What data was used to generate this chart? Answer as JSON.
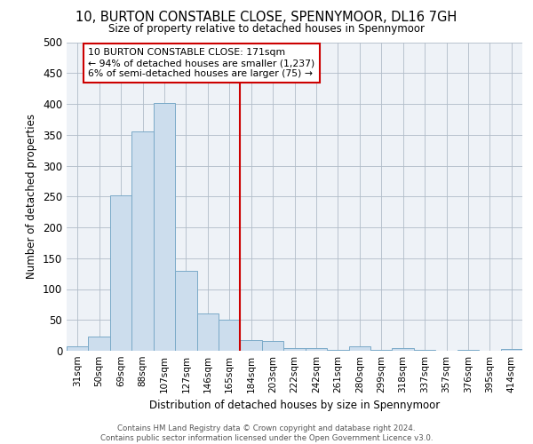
{
  "title": "10, BURTON CONSTABLE CLOSE, SPENNYMOOR, DL16 7GH",
  "subtitle": "Size of property relative to detached houses in Spennymoor",
  "xlabel": "Distribution of detached houses by size in Spennymoor",
  "ylabel": "Number of detached properties",
  "bar_labels": [
    "31sqm",
    "50sqm",
    "69sqm",
    "88sqm",
    "107sqm",
    "127sqm",
    "146sqm",
    "165sqm",
    "184sqm",
    "203sqm",
    "222sqm",
    "242sqm",
    "261sqm",
    "280sqm",
    "299sqm",
    "318sqm",
    "337sqm",
    "357sqm",
    "376sqm",
    "395sqm",
    "414sqm"
  ],
  "bar_values": [
    7,
    23,
    252,
    355,
    402,
    130,
    60,
    50,
    17,
    16,
    5,
    4,
    1,
    7,
    1,
    5,
    1,
    0,
    1,
    0,
    3
  ],
  "bar_color": "#ccdded",
  "bar_edge_color": "#7aaac8",
  "vline_color": "#cc0000",
  "annotation_text": "10 BURTON CONSTABLE CLOSE: 171sqm\n← 94% of detached houses are smaller (1,237)\n6% of semi-detached houses are larger (75) →",
  "annotation_box_color": "#ffffff",
  "annotation_box_edgecolor": "#cc0000",
  "ylim": [
    0,
    500
  ],
  "yticks": [
    0,
    50,
    100,
    150,
    200,
    250,
    300,
    350,
    400,
    450,
    500
  ],
  "footer_text": "Contains HM Land Registry data © Crown copyright and database right 2024.\nContains public sector information licensed under the Open Government Licence v3.0.",
  "plot_bg_color": "#eef2f7"
}
